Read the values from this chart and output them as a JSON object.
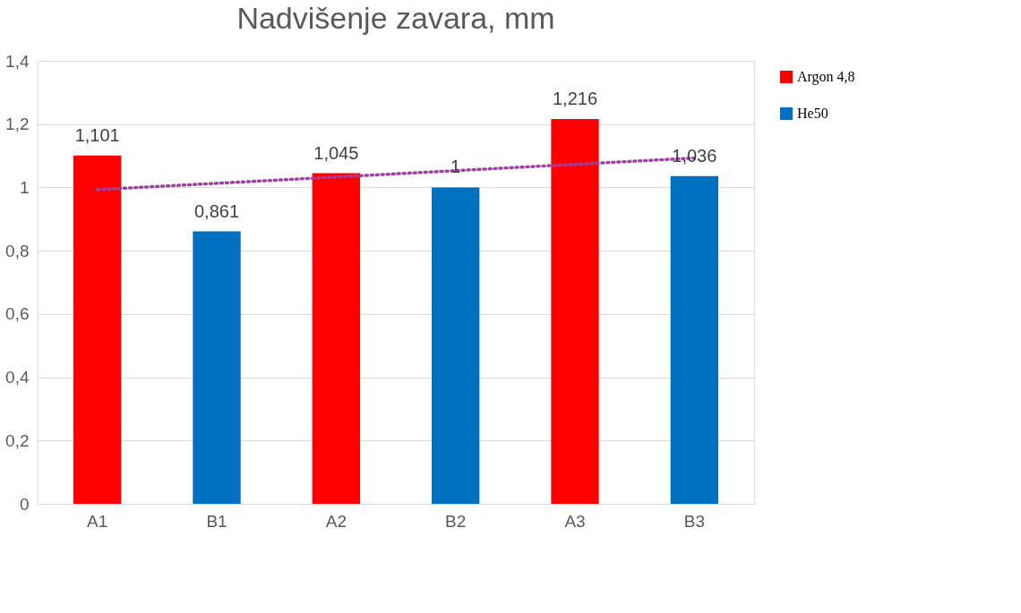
{
  "chart_data": {
    "type": "bar",
    "title": "Nadvišenje zavara, mm",
    "categories": [
      "A1",
      "B1",
      "A2",
      "B2",
      "A3",
      "B3"
    ],
    "series": [
      {
        "name": "Argon 4,8",
        "color": "#ff0000",
        "values": [
          1.101,
          null,
          1.045,
          null,
          1.216,
          null
        ],
        "value_labels": [
          "1,101",
          null,
          "1,045",
          null,
          "1,216",
          null
        ]
      },
      {
        "name": "He50",
        "color": "#0070c0",
        "values": [
          null,
          0.861,
          null,
          1,
          null,
          1.036
        ],
        "value_labels": [
          null,
          "0,861",
          null,
          "1",
          null,
          "1,036"
        ]
      },
      {
        "type": "line",
        "color": "#a040a0",
        "line_style": "dotted",
        "marker": "none",
        "values": [
          0.993,
          1.013,
          1.033,
          1.053,
          1.073,
          1.093
        ]
      }
    ],
    "ylim": [
      0,
      1.4
    ],
    "yticks": [
      0,
      {
        "value": 0.2,
        "label": "0,2"
      },
      {
        "value": 0.4,
        "label": "0,4"
      },
      {
        "value": 0.6,
        "label": "0,6"
      },
      {
        "value": 0.8,
        "label": "0,8"
      },
      1,
      {
        "value": 1.2,
        "label": "1,2"
      },
      {
        "value": 1.4,
        "label": "1,4"
      }
    ],
    "grid": "y",
    "legend": "right"
  }
}
